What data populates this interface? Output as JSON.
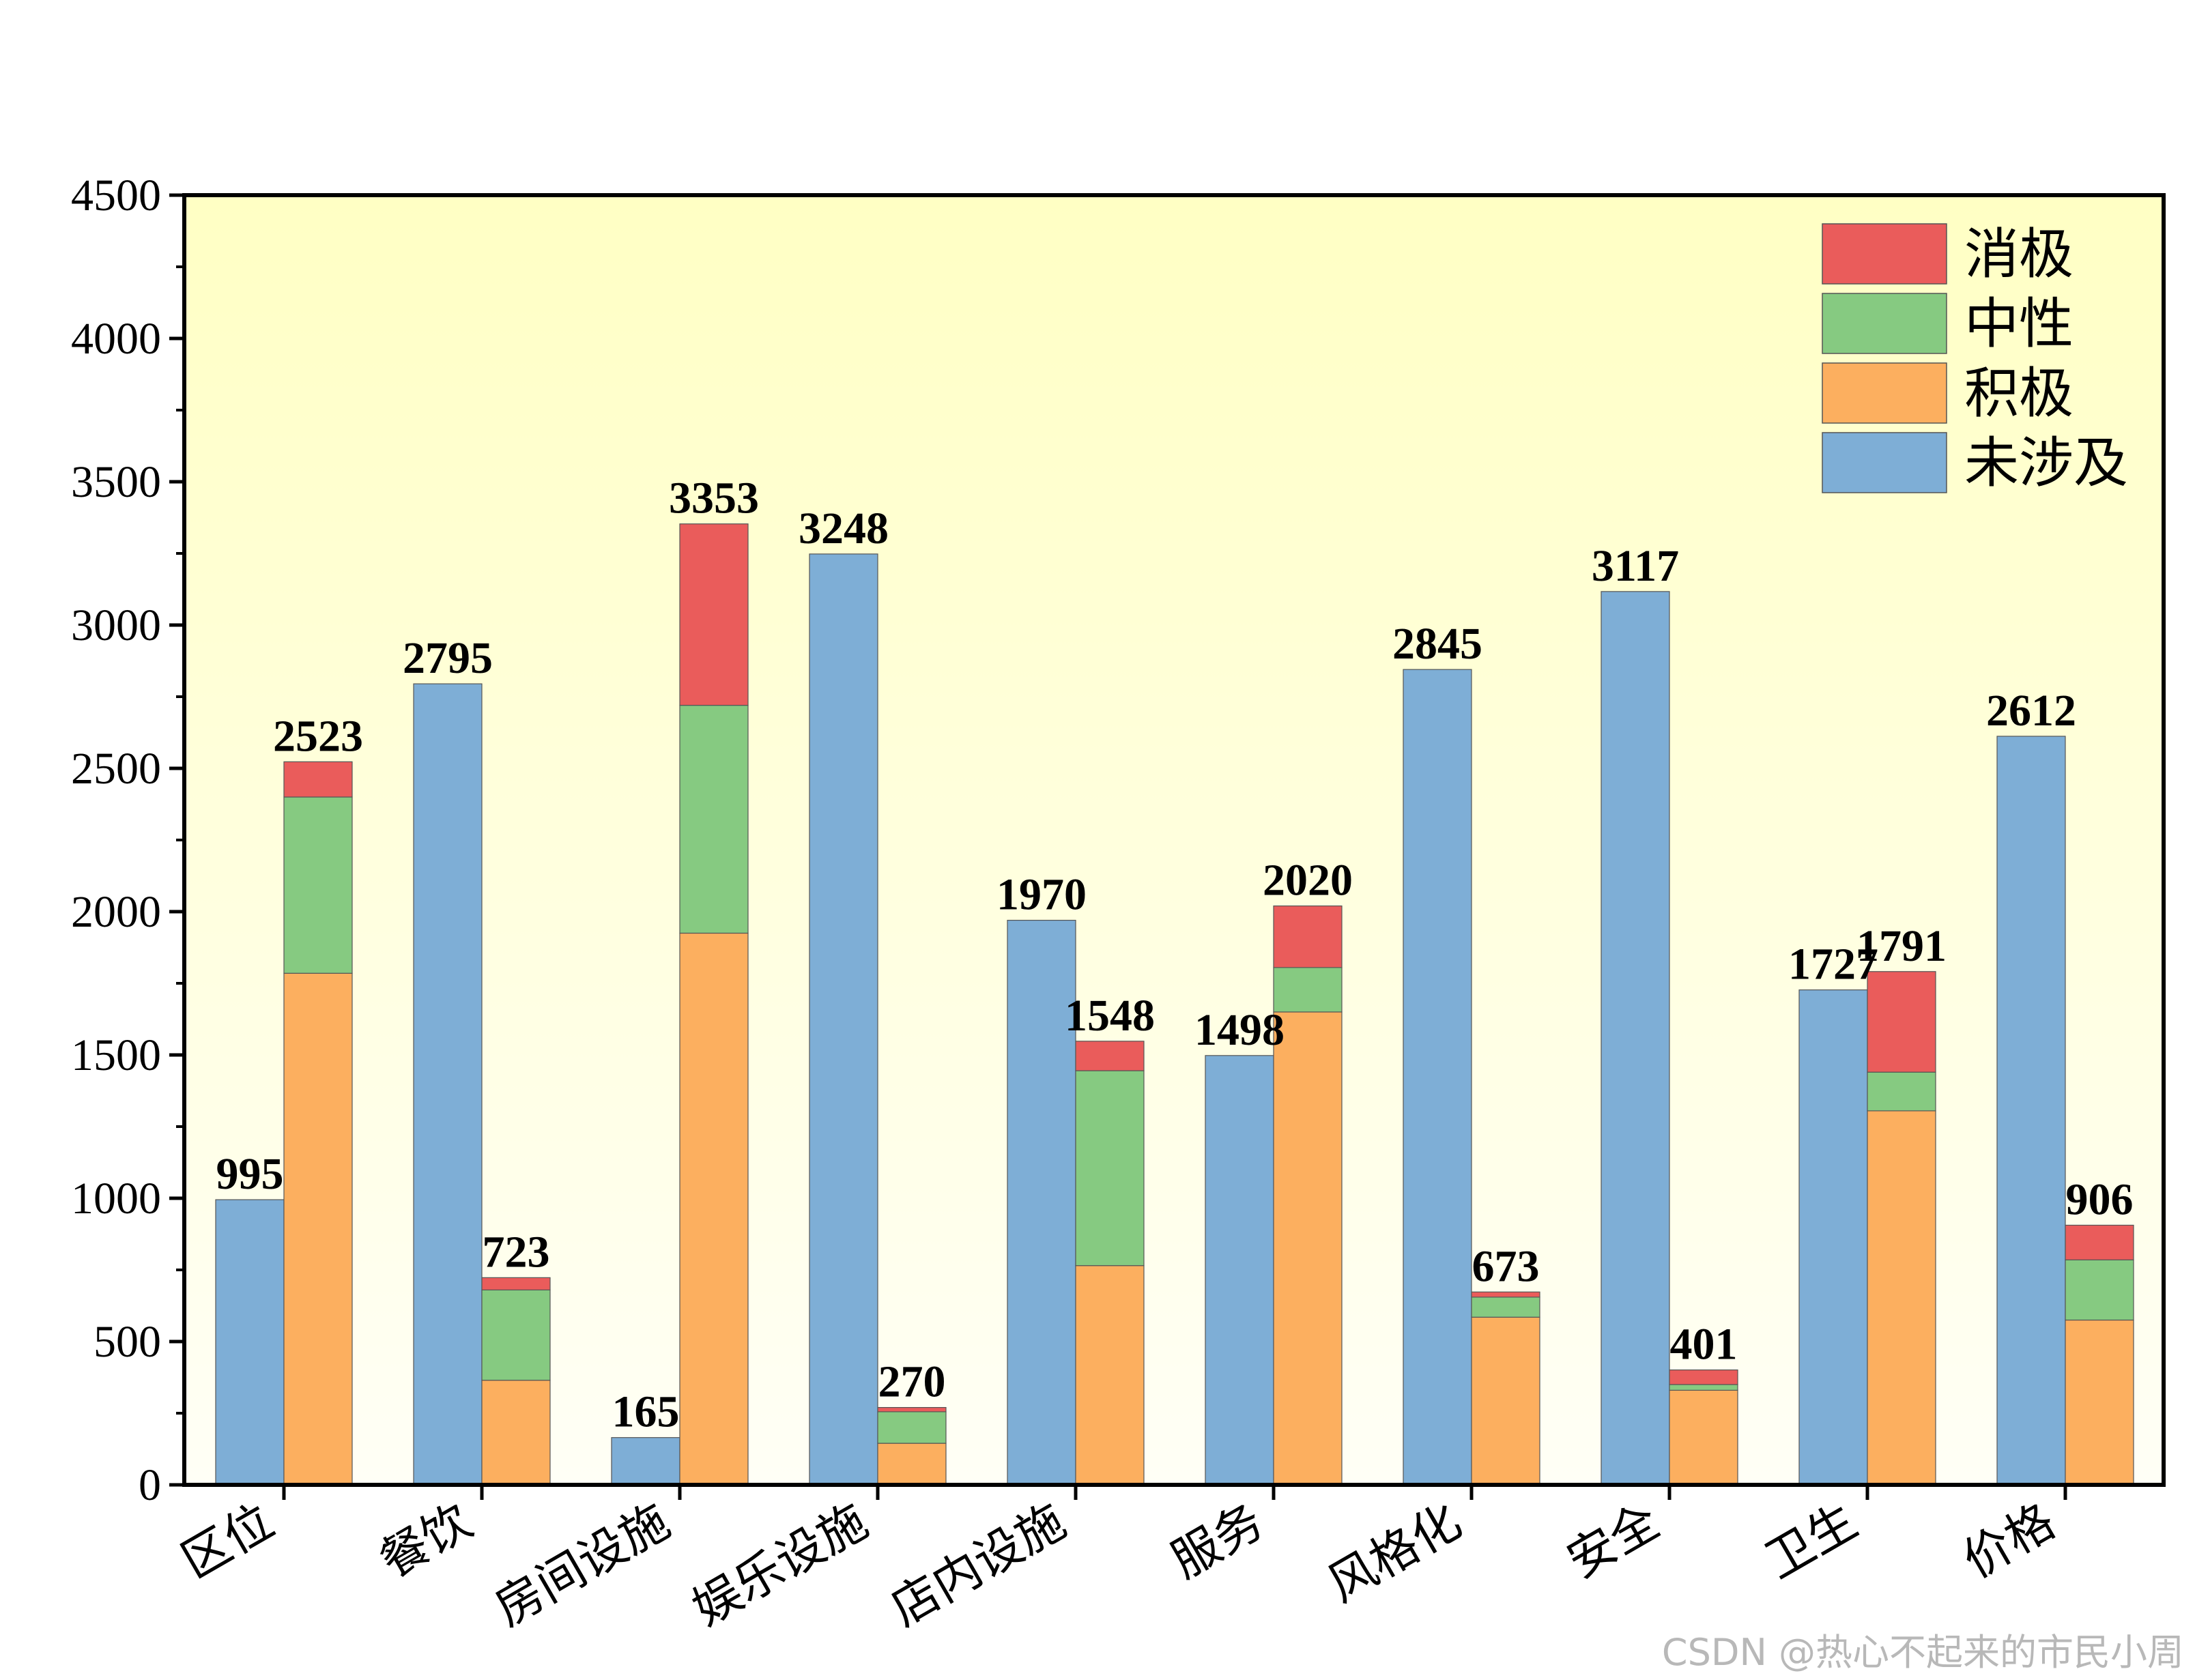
{
  "chart_data": {
    "type": "bar",
    "categories": [
      "区位",
      "餐饮",
      "房间设施",
      "娱乐设施",
      "店内设施",
      "服务",
      "风格化",
      "安全",
      "卫生",
      "价格"
    ],
    "ylim": [
      0,
      4500
    ],
    "yticks": [
      0,
      500,
      1000,
      1500,
      2000,
      2500,
      3000,
      3500,
      4000,
      4500
    ],
    "grid": false,
    "legend_position": "top-right",
    "series": [
      {
        "name": "未涉及",
        "color": "#7eaed6",
        "group": "left",
        "values": [
          995,
          2795,
          165,
          3248,
          1970,
          1498,
          2845,
          3117,
          1727,
          2612
        ]
      },
      {
        "name": "积极",
        "color": "#fcaf5f",
        "group": "right",
        "values": [
          1785,
          365,
          1925,
          145,
          765,
          1650,
          585,
          330,
          1305,
          575
        ]
      },
      {
        "name": "中性",
        "color": "#86ca81",
        "group": "right",
        "values": [
          615,
          315,
          795,
          110,
          680,
          155,
          70,
          20,
          135,
          210
        ]
      },
      {
        "name": "消极",
        "color": "#ea5c5b",
        "group": "right",
        "values": [
          123,
          43,
          633,
          15,
          103,
          215,
          18,
          51,
          351,
          121
        ]
      }
    ],
    "totals": {
      "left": [
        995,
        2795,
        165,
        3248,
        1970,
        1498,
        2845,
        3117,
        1727,
        2612
      ],
      "right": [
        2523,
        723,
        3353,
        270,
        1548,
        2020,
        673,
        401,
        1791,
        906
      ]
    },
    "legend": [
      "消极",
      "中性",
      "积极",
      "未涉及"
    ],
    "background_gradient": [
      "#ffffc4",
      "#fffff6"
    ]
  },
  "watermark": "CSDN @热心不起来的市民小周"
}
